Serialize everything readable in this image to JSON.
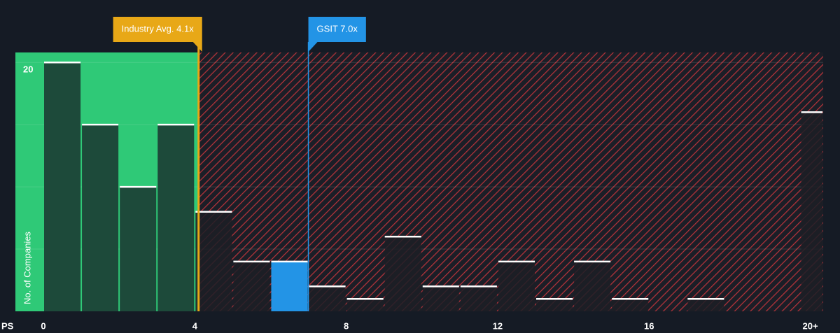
{
  "chart_data": {
    "type": "histogram",
    "x_label": "PS",
    "y_label": "No. of Companies",
    "bins": [
      0,
      1,
      2,
      3,
      4,
      5,
      6,
      7,
      8,
      9,
      10,
      11,
      12,
      13,
      14,
      15,
      16,
      17,
      18,
      19,
      20,
      21
    ],
    "counts": [
      20,
      15,
      10,
      15,
      8,
      4,
      4,
      2,
      1,
      6,
      2,
      2,
      4,
      1,
      4,
      1,
      0,
      1,
      0,
      0,
      16
    ],
    "xlim": [
      0,
      20.6
    ],
    "ylim": [
      0,
      20.8
    ],
    "xticks": [
      0,
      4,
      8,
      12,
      16,
      {
        "value": 20,
        "label": "20+"
      }
    ],
    "yticks": [
      20
    ],
    "ygrid": [
      5,
      10,
      15,
      20
    ],
    "annotations": [
      {
        "label": "Industry Avg. 4.1x",
        "value": 4.1,
        "color": "#e8a817"
      },
      {
        "label": "GSIT 7.0x",
        "value": 7.0,
        "color": "#2394e6"
      }
    ],
    "colors": {
      "below": "#2fc977",
      "above": "#c0333a",
      "highlight": "#2394e6"
    }
  }
}
